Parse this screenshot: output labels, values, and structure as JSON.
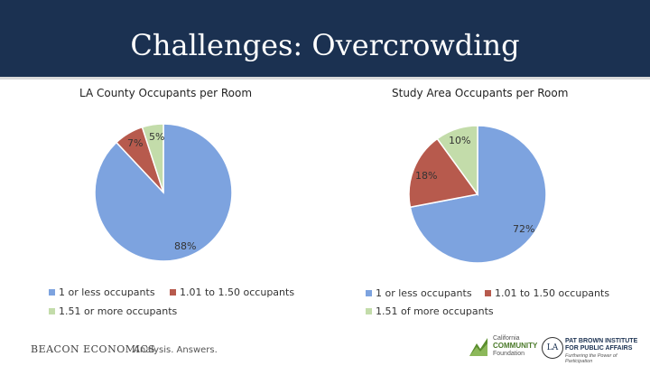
{
  "slide": {
    "title": "Challenges: Overcrowding"
  },
  "colors": {
    "blue": "#7da3df",
    "red": "#b75a4d",
    "green": "#c3dcaa",
    "header": "#1b3151"
  },
  "chart_data": [
    {
      "type": "pie",
      "title": "LA County Occupants per Room",
      "categories": [
        "1 or less occupants",
        "1.01 to 1.50 occupants",
        "1.51 or more occupants"
      ],
      "values": [
        88,
        7,
        5
      ],
      "labels": [
        "88%",
        "7%",
        "5%"
      ],
      "legend": "bottom"
    },
    {
      "type": "pie",
      "title": "Study Area Occupants per Room",
      "categories": [
        "1 or less occupants",
        "1.01 to 1.50 occupants",
        "1.51 of more occupants"
      ],
      "values": [
        72,
        18,
        10
      ],
      "labels": [
        "72%",
        "18%",
        "10%"
      ],
      "legend": "bottom"
    }
  ],
  "footer": {
    "brand": "BEACON ECONOMICS",
    "tagline": "Analysis. Answers.",
    "logo1_line1": "California",
    "logo1_line2": "COMMUNITY",
    "logo1_line3": "Foundation",
    "logo2_seal": "LA",
    "logo2_line1": "PAT BROWN INSTITUTE",
    "logo2_line2": "FOR PUBLIC AFFAIRS",
    "logo2_line3": "Furthering the Power of Participation"
  }
}
